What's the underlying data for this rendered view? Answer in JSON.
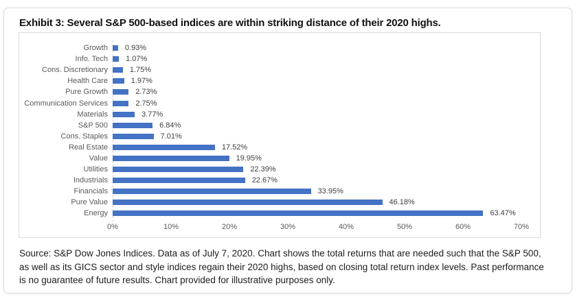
{
  "page": {
    "title": "Exhibit 3: Several S&P 500-based indices are within striking distance of their 2020 highs."
  },
  "chart_data": {
    "type": "bar",
    "orientation": "horizontal",
    "title": "Exhibit 3: Several S&P 500-based indices are within striking distance of their 2020 highs.",
    "categories": [
      "Growth",
      "Info. Tech",
      "Cons. Discretionary",
      "Health Care",
      "Pure Growth",
      "Communication Services",
      "Materials",
      "S&P 500",
      "Cons. Staples",
      "Real Estate",
      "Value",
      "Utilities",
      "Industrials",
      "Financials",
      "Pure Value",
      "Energy"
    ],
    "values": [
      0.93,
      1.07,
      1.75,
      1.97,
      2.73,
      2.75,
      3.77,
      6.84,
      7.01,
      17.52,
      19.95,
      22.39,
      22.67,
      33.95,
      46.18,
      63.47
    ],
    "value_labels": [
      "0.93%",
      "1.07%",
      "1.75%",
      "1.97%",
      "2.73%",
      "2.75%",
      "3.77%",
      "6.84%",
      "7.01%",
      "17.52%",
      "19.95%",
      "22.39%",
      "22.67%",
      "33.95%",
      "46.18%",
      "63.47%"
    ],
    "xlabel": "",
    "ylabel": "",
    "xlim": [
      0,
      70
    ],
    "x_ticks": [
      "0%",
      "10%",
      "20%",
      "30%",
      "40%",
      "50%",
      "60%",
      "70%"
    ],
    "grid": false,
    "legend": false,
    "bar_color": "#4472C4",
    "axis_text_color": "#595959",
    "value_text_color": "#404040"
  },
  "footer": {
    "line1": "Source: S&P Dow Jones Indices.  Data as of July 7, 2020. Chart shows the total returns that are needed such that the S&P 500,",
    "line2": "as well as its GICS sector and style indices regain their 2020 highs, based on closing total return index levels.  Past performance",
    "line3": "is no guarantee of future results. Chart provided for illustrative purposes only."
  }
}
